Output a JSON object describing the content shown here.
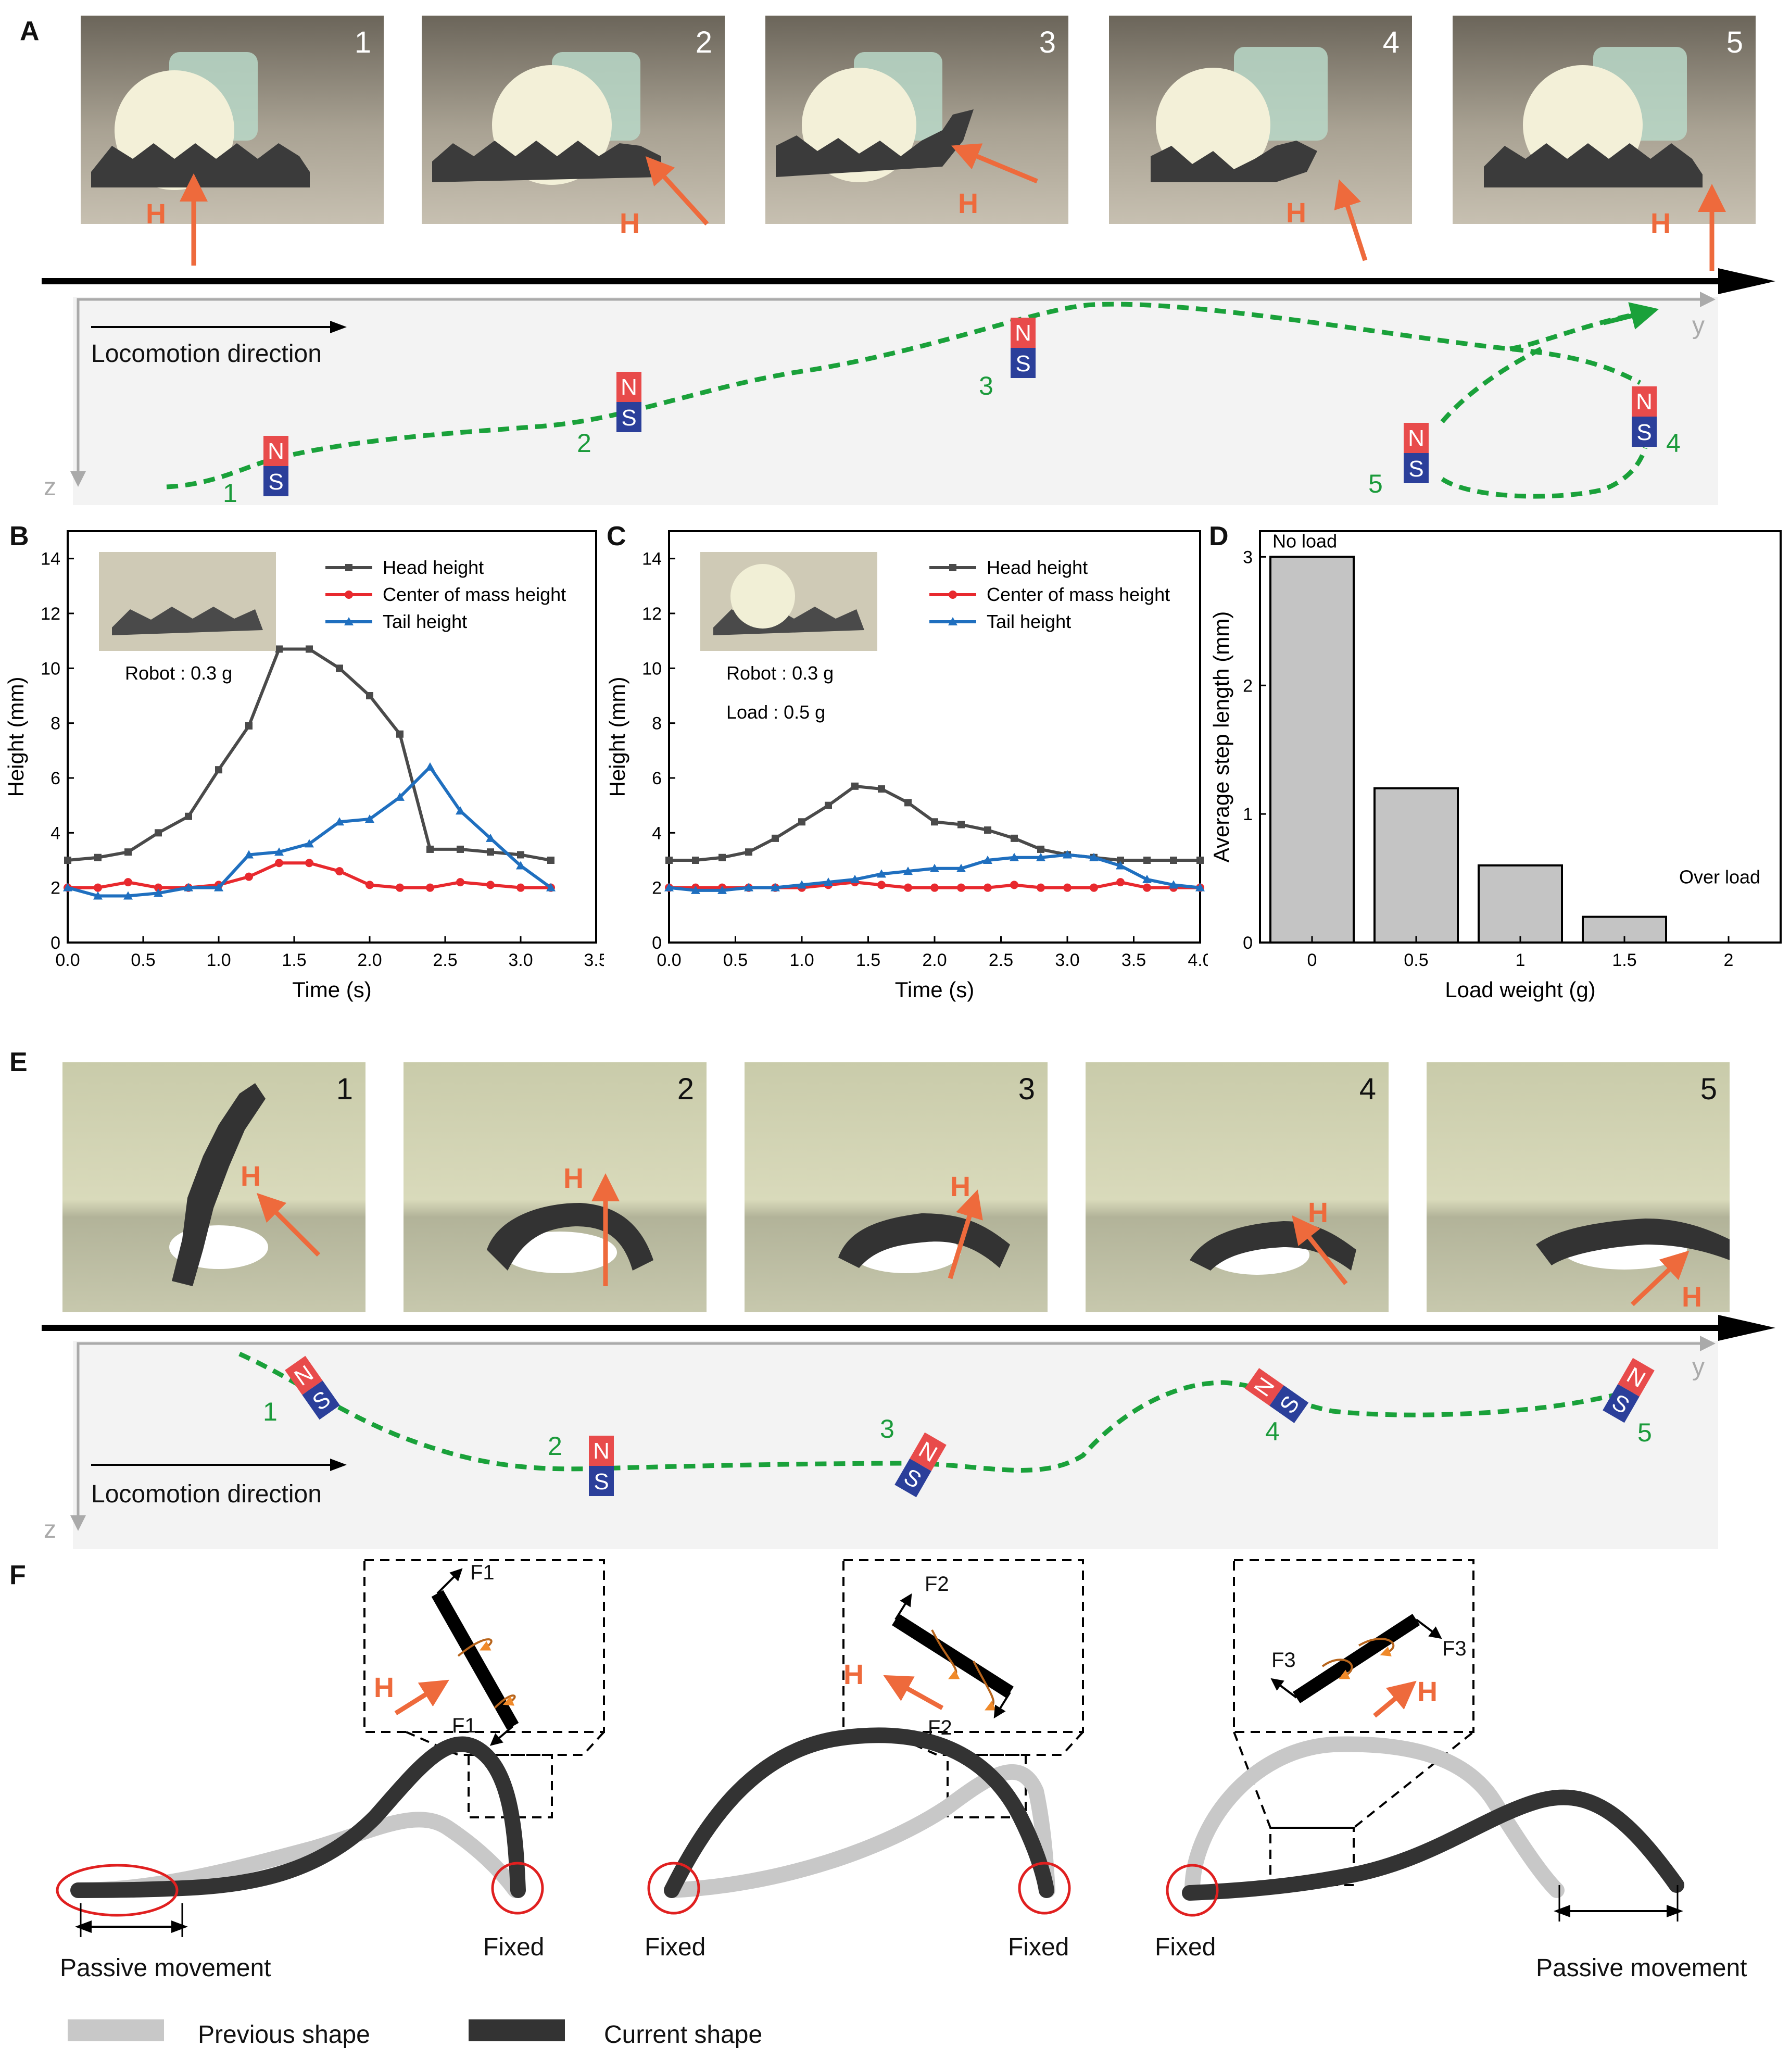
{
  "panels": {
    "A": "A",
    "B": "B",
    "C": "C",
    "D": "D",
    "E": "E",
    "F": "F"
  },
  "panel_a": {
    "frames": [
      "1",
      "2",
      "3",
      "4",
      "5"
    ],
    "h_label": "H",
    "locomotion_label": "Locomotion direction",
    "axis_y": "y",
    "axis_z": "z",
    "traj_nums": [
      "1",
      "2",
      "3",
      "4",
      "5"
    ],
    "magnet_n": "N",
    "magnet_s": "S"
  },
  "panel_e": {
    "frames": [
      "1",
      "2",
      "3",
      "4",
      "5"
    ],
    "h_label": "H",
    "locomotion_label": "Locomotion direction",
    "axis_y": "y",
    "axis_z": "z",
    "traj_nums": [
      "1",
      "2",
      "3",
      "4",
      "5"
    ]
  },
  "chart_data": [
    {
      "id": "B",
      "type": "line",
      "xlabel": "Time (s)",
      "ylabel": "Height (mm)",
      "xlim": [
        0,
        3.5
      ],
      "ylim": [
        0,
        15
      ],
      "xticks": [
        "0.0",
        "0.5",
        "1.0",
        "1.5",
        "2.0",
        "2.5",
        "3.0",
        "3.5"
      ],
      "yticks": [
        "0",
        "2",
        "4",
        "6",
        "8",
        "10",
        "12",
        "14"
      ],
      "annotations": [
        "Robot : 0.3 g"
      ],
      "series": [
        {
          "name": "Head height",
          "color": "#4a4a4a",
          "marker": "square",
          "x": [
            0,
            0.2,
            0.4,
            0.6,
            0.8,
            1.0,
            1.2,
            1.4,
            1.6,
            1.8,
            2.0,
            2.2,
            2.4,
            2.6,
            2.8,
            3.0,
            3.2
          ],
          "y": [
            3.0,
            3.1,
            3.3,
            4.0,
            4.6,
            6.3,
            7.9,
            10.7,
            10.7,
            10.0,
            9.0,
            7.6,
            3.4,
            3.4,
            3.3,
            3.2,
            3.0
          ]
        },
        {
          "name": "Center of mass height",
          "color": "#e8292e",
          "marker": "circle",
          "x": [
            0,
            0.2,
            0.4,
            0.6,
            0.8,
            1.0,
            1.2,
            1.4,
            1.6,
            1.8,
            2.0,
            2.2,
            2.4,
            2.6,
            2.8,
            3.0,
            3.2
          ],
          "y": [
            2.0,
            2.0,
            2.2,
            2.0,
            2.0,
            2.1,
            2.4,
            2.9,
            2.9,
            2.6,
            2.1,
            2.0,
            2.0,
            2.2,
            2.1,
            2.0,
            2.0
          ]
        },
        {
          "name": "Tail height",
          "color": "#1f6fbf",
          "marker": "triangle",
          "x": [
            0,
            0.2,
            0.4,
            0.6,
            0.8,
            1.0,
            1.2,
            1.4,
            1.6,
            1.8,
            2.0,
            2.2,
            2.4,
            2.6,
            2.8,
            3.0,
            3.2
          ],
          "y": [
            2.0,
            1.7,
            1.7,
            1.8,
            2.0,
            2.0,
            3.2,
            3.3,
            3.6,
            4.4,
            4.5,
            5.3,
            6.4,
            4.8,
            3.8,
            2.8,
            2.0
          ]
        }
      ]
    },
    {
      "id": "C",
      "type": "line",
      "xlabel": "Time (s)",
      "ylabel": "Height (mm)",
      "xlim": [
        0,
        4.0
      ],
      "ylim": [
        0,
        15
      ],
      "xticks": [
        "0.0",
        "0.5",
        "1.0",
        "1.5",
        "2.0",
        "2.5",
        "3.0",
        "3.5",
        "4.0"
      ],
      "yticks": [
        "0",
        "2",
        "4",
        "6",
        "8",
        "10",
        "12",
        "14"
      ],
      "annotations": [
        "Robot : 0.3 g",
        "Load : 0.5 g"
      ],
      "series": [
        {
          "name": "Head height",
          "color": "#4a4a4a",
          "marker": "square",
          "x": [
            0,
            0.2,
            0.4,
            0.6,
            0.8,
            1.0,
            1.2,
            1.4,
            1.6,
            1.8,
            2.0,
            2.2,
            2.4,
            2.6,
            2.8,
            3.0,
            3.2,
            3.4,
            3.6,
            3.8,
            4.0
          ],
          "y": [
            3.0,
            3.0,
            3.1,
            3.3,
            3.8,
            4.4,
            5.0,
            5.7,
            5.6,
            5.1,
            4.4,
            4.3,
            4.1,
            3.8,
            3.4,
            3.2,
            3.1,
            3.0,
            3.0,
            3.0,
            3.0
          ]
        },
        {
          "name": "Center of mass height",
          "color": "#e8292e",
          "marker": "circle",
          "x": [
            0,
            0.2,
            0.4,
            0.6,
            0.8,
            1.0,
            1.2,
            1.4,
            1.6,
            1.8,
            2.0,
            2.2,
            2.4,
            2.6,
            2.8,
            3.0,
            3.2,
            3.4,
            3.6,
            3.8,
            4.0
          ],
          "y": [
            2.0,
            2.0,
            2.0,
            2.0,
            2.0,
            2.0,
            2.1,
            2.2,
            2.1,
            2.0,
            2.0,
            2.0,
            2.0,
            2.1,
            2.0,
            2.0,
            2.0,
            2.2,
            2.0,
            2.0,
            2.0
          ]
        },
        {
          "name": "Tail height",
          "color": "#1f6fbf",
          "marker": "triangle",
          "x": [
            0,
            0.2,
            0.4,
            0.6,
            0.8,
            1.0,
            1.2,
            1.4,
            1.6,
            1.8,
            2.0,
            2.2,
            2.4,
            2.6,
            2.8,
            3.0,
            3.2,
            3.4,
            3.6,
            3.8,
            4.0
          ],
          "y": [
            2.0,
            1.9,
            1.9,
            2.0,
            2.0,
            2.1,
            2.2,
            2.3,
            2.5,
            2.6,
            2.7,
            2.7,
            3.0,
            3.1,
            3.1,
            3.2,
            3.1,
            2.8,
            2.3,
            2.1,
            2.0
          ]
        }
      ]
    },
    {
      "id": "D",
      "type": "bar",
      "xlabel": "Load weight (g)",
      "ylabel": "Average step length (mm)",
      "categories": [
        "0",
        "0.5",
        "1",
        "1.5",
        "2"
      ],
      "values": [
        3.0,
        1.2,
        0.6,
        0.2,
        0
      ],
      "ylim": [
        0,
        3.2
      ],
      "yticks": [
        "0",
        "1",
        "2",
        "3"
      ],
      "annotations": [
        "No load",
        "Over load"
      ],
      "bar_color": "#c4c4c4"
    }
  ],
  "panel_f": {
    "forces": [
      "F1",
      "F1",
      "F2",
      "F2",
      "F3",
      "F3"
    ],
    "h_label": "H",
    "labels": [
      "Passive movement",
      "Fixed",
      "Fixed",
      "Fixed",
      "Fixed",
      "Passive movement"
    ],
    "legend": [
      "Previous shape",
      "Current shape"
    ]
  }
}
